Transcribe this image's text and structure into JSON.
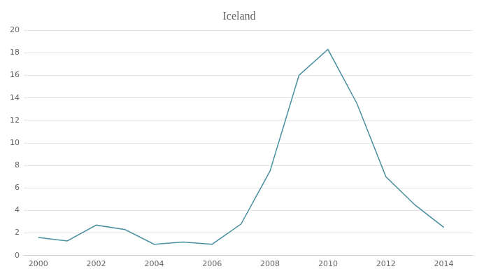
{
  "chart_data": {
    "type": "line",
    "title": "Iceland",
    "x": [
      2000,
      2001,
      2002,
      2003,
      2004,
      2005,
      2006,
      2007,
      2008,
      2009,
      2010,
      2011,
      2012,
      2013,
      2014
    ],
    "values": [
      1.6,
      1.3,
      2.7,
      2.3,
      1.0,
      1.2,
      1.0,
      2.8,
      7.5,
      16.0,
      18.3,
      13.5,
      7.0,
      4.5,
      2.5
    ],
    "color": "#4a8fa0",
    "xlim": [
      1999.5,
      2015
    ],
    "xticks": [
      2000,
      2002,
      2004,
      2006,
      2008,
      2010,
      2012,
      2014
    ],
    "ylim": [
      0,
      20
    ],
    "yticks": [
      0,
      2,
      4,
      6,
      8,
      10,
      12,
      14,
      16,
      18,
      20
    ],
    "grid": "y"
  }
}
